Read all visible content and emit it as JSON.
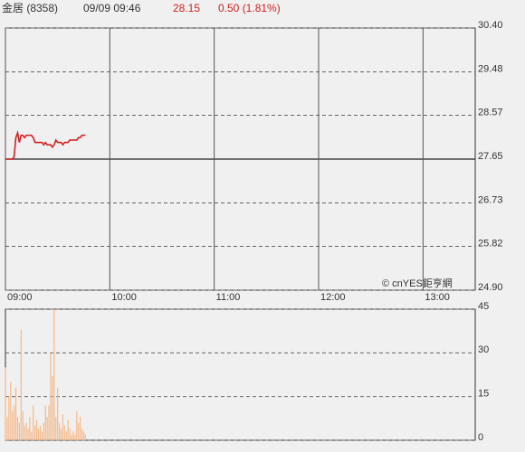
{
  "header": {
    "name": "金居 (8358)",
    "datetime": "09/09 09:46",
    "price": "28.15",
    "change": "0.50 (1.81%)"
  },
  "chart_data": [
    {
      "type": "line",
      "color": "#d42020",
      "annotation": "© cnYES鉅亨網",
      "x": [
        "09:00",
        "09:01",
        "09:02",
        "09:03",
        "09:04",
        "09:05",
        "09:06",
        "09:07",
        "09:08",
        "09:09",
        "09:10",
        "09:11",
        "09:12",
        "09:13",
        "09:14",
        "09:15",
        "09:16",
        "09:17",
        "09:18",
        "09:19",
        "09:20",
        "09:21",
        "09:22",
        "09:23",
        "09:24",
        "09:25",
        "09:26",
        "09:27",
        "09:28",
        "09:29",
        "09:30",
        "09:31",
        "09:32",
        "09:33",
        "09:34",
        "09:35",
        "09:36",
        "09:37",
        "09:38",
        "09:39",
        "09:40",
        "09:41",
        "09:42",
        "09:43",
        "09:44",
        "09:45",
        "09:46"
      ],
      "values": [
        27.65,
        27.65,
        27.65,
        27.65,
        27.65,
        27.7,
        28.1,
        28.2,
        28.0,
        28.15,
        28.15,
        28.1,
        28.15,
        28.15,
        28.15,
        28.15,
        28.1,
        28.0,
        28.0,
        28.0,
        28.0,
        28.0,
        27.95,
        28.0,
        27.95,
        27.95,
        27.95,
        27.9,
        27.95,
        28.05,
        28.0,
        28.0,
        28.0,
        27.95,
        28.0,
        28.0,
        28.0,
        28.05,
        28.05,
        28.05,
        28.05,
        28.05,
        28.1,
        28.1,
        28.15,
        28.15,
        28.15
      ],
      "xlim": [
        "09:00",
        "13:30"
      ],
      "xticks": [
        "09:00",
        "10:00",
        "11:00",
        "12:00",
        "13:00"
      ],
      "ylim": [
        24.9,
        30.4
      ],
      "yticks": [
        {
          "value": 24.9,
          "label": "24.90"
        },
        25.82,
        26.73,
        27.65,
        28.57,
        29.48,
        {
          "value": 30.4,
          "label": "30.40"
        }
      ],
      "reference_line": 27.65
    },
    {
      "type": "bar",
      "color": "#f5b98a",
      "x": [
        "09:00",
        "09:01",
        "09:02",
        "09:03",
        "09:04",
        "09:05",
        "09:06",
        "09:07",
        "09:08",
        "09:09",
        "09:10",
        "09:11",
        "09:12",
        "09:13",
        "09:14",
        "09:15",
        "09:16",
        "09:17",
        "09:18",
        "09:19",
        "09:20",
        "09:21",
        "09:22",
        "09:23",
        "09:24",
        "09:25",
        "09:26",
        "09:27",
        "09:28",
        "09:29",
        "09:30",
        "09:31",
        "09:32",
        "09:33",
        "09:34",
        "09:35",
        "09:36",
        "09:37",
        "09:38",
        "09:39",
        "09:40",
        "09:41",
        "09:42",
        "09:43",
        "09:44",
        "09:45",
        "09:46"
      ],
      "values": [
        25,
        8,
        15,
        20,
        10,
        12,
        18,
        8,
        6,
        38,
        10,
        5,
        6,
        4,
        8,
        3,
        12,
        5,
        7,
        4,
        5,
        3,
        6,
        12,
        8,
        12,
        30,
        22,
        45,
        8,
        18,
        6,
        4,
        9,
        5,
        3,
        7,
        4,
        2,
        3,
        2,
        10,
        6,
        8,
        4,
        3,
        2
      ],
      "xlim": [
        "09:00",
        "13:30"
      ],
      "ylim": [
        0,
        45
      ],
      "yticks": [
        0,
        15,
        30,
        45
      ]
    }
  ]
}
